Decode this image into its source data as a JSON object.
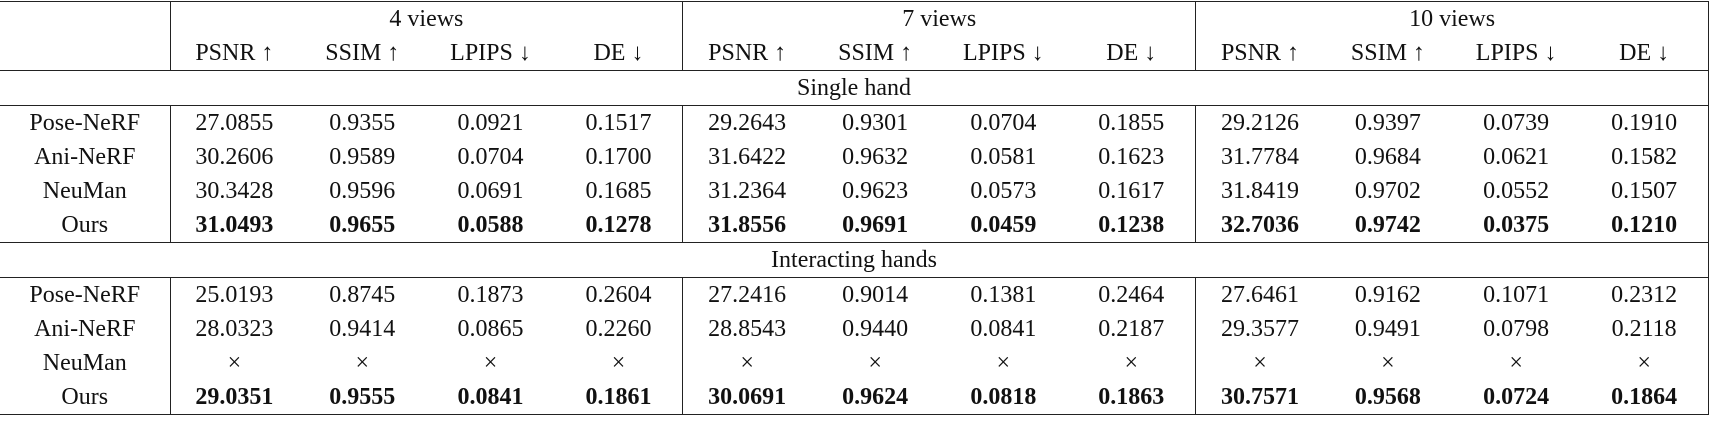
{
  "header": {
    "groups": [
      "4 views",
      "7 views",
      "10 views"
    ],
    "metrics": [
      "PSNR ↑",
      "SSIM ↑",
      "LPIPS ↓",
      "DE ↓",
      "PSNR ↑",
      "SSIM ↑",
      "LPIPS ↓",
      "DE ↓",
      "PSNR ↑",
      "SSIM ↑",
      "LPIPS ↓",
      "DE ↓"
    ]
  },
  "sections": [
    {
      "title": "Single hand",
      "rows": [
        {
          "method": "Pose-NeRF",
          "values": [
            "27.0855",
            "0.9355",
            "0.0921",
            "0.1517",
            "29.2643",
            "0.9301",
            "0.0704",
            "0.1855",
            "29.2126",
            "0.9397",
            "0.0739",
            "0.1910"
          ]
        },
        {
          "method": "Ani-NeRF",
          "values": [
            "30.2606",
            "0.9589",
            "0.0704",
            "0.1700",
            "31.6422",
            "0.9632",
            "0.0581",
            "0.1623",
            "31.7784",
            "0.9684",
            "0.0621",
            "0.1582"
          ]
        },
        {
          "method": "NeuMan",
          "values": [
            "30.3428",
            "0.9596",
            "0.0691",
            "0.1685",
            "31.2364",
            "0.9623",
            "0.0573",
            "0.1617",
            "31.8419",
            "0.9702",
            "0.0552",
            "0.1507"
          ]
        },
        {
          "method": "Ours",
          "values": [
            "31.0493",
            "0.9655",
            "0.0588",
            "0.1278",
            "31.8556",
            "0.9691",
            "0.0459",
            "0.1238",
            "32.7036",
            "0.9742",
            "0.0375",
            "0.1210"
          ]
        }
      ]
    },
    {
      "title": "Interacting hands",
      "rows": [
        {
          "method": "Pose-NeRF",
          "values": [
            "25.0193",
            "0.8745",
            "0.1873",
            "0.2604",
            "27.2416",
            "0.9014",
            "0.1381",
            "0.2464",
            "27.6461",
            "0.9162",
            "0.1071",
            "0.2312"
          ]
        },
        {
          "method": "Ani-NeRF",
          "values": [
            "28.0323",
            "0.9414",
            "0.0865",
            "0.2260",
            "28.8543",
            "0.9440",
            "0.0841",
            "0.2187",
            "29.3577",
            "0.9491",
            "0.0798",
            "0.2118"
          ]
        },
        {
          "method": "NeuMan",
          "values": [
            "×",
            "×",
            "×",
            "×",
            "×",
            "×",
            "×",
            "×",
            "×",
            "×",
            "×",
            "×"
          ]
        },
        {
          "method": "Ours",
          "values": [
            "29.0351",
            "0.9555",
            "0.0841",
            "0.1861",
            "30.0691",
            "0.9624",
            "0.0818",
            "0.1863",
            "30.7571",
            "0.9568",
            "0.0724",
            "0.1864"
          ]
        }
      ]
    }
  ]
}
